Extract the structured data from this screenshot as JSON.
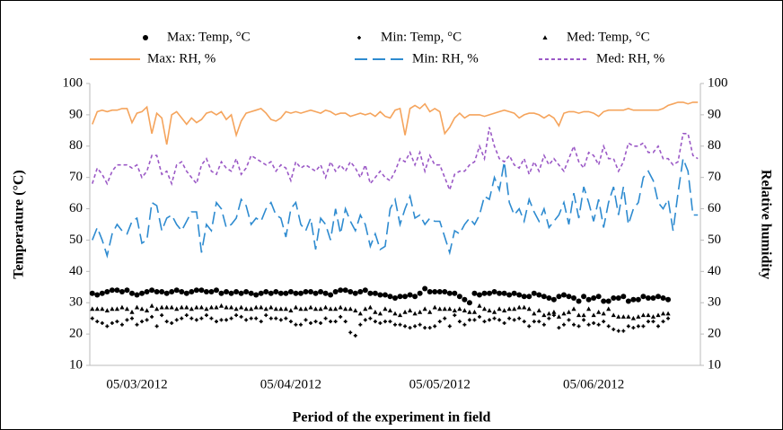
{
  "chart_data": {
    "type": "line",
    "x_label": "Period of the experiment in field",
    "y_label": "Temperature (°C)",
    "y2_label": "Relative humidity",
    "categories": [
      null,
      null,
      null,
      null,
      null,
      null,
      null,
      null,
      null,
      "05/03/2012",
      null,
      null,
      null,
      null,
      null,
      null,
      null,
      null,
      null,
      null,
      null,
      null,
      null,
      null,
      null,
      null,
      null,
      null,
      null,
      null,
      null,
      null,
      null,
      null,
      null,
      null,
      null,
      null,
      null,
      null,
      "05/04/2012",
      null,
      null,
      null,
      null,
      null,
      null,
      null,
      null,
      null,
      null,
      null,
      null,
      null,
      null,
      null,
      null,
      null,
      null,
      null,
      null,
      null,
      null,
      null,
      null,
      null,
      null,
      null,
      null,
      null,
      "05/05/2012",
      null,
      null,
      null,
      null,
      null,
      null,
      null,
      null,
      null,
      null,
      null,
      null,
      null,
      null,
      null,
      null,
      null,
      null,
      null,
      null,
      null,
      null,
      null,
      null,
      null,
      null,
      null,
      null,
      null,
      null,
      "05/06/2012",
      null,
      null,
      null,
      null,
      null,
      null,
      null,
      null,
      null,
      null,
      null,
      null,
      null,
      null,
      null,
      null,
      null,
      null,
      null,
      null,
      null
    ],
    "ylim": [
      10,
      100
    ],
    "yticks": [
      10,
      20,
      30,
      40,
      50,
      60,
      70,
      80,
      90,
      100
    ],
    "y2lim": [
      10,
      100
    ],
    "y2ticks": [
      10,
      20,
      30,
      40,
      50,
      60,
      70,
      80,
      90,
      100
    ],
    "series": [
      {
        "name": "Max: Temp, °C",
        "color": "#000000",
        "marker": "circle",
        "values": [
          33,
          32.5,
          33,
          33.5,
          34,
          34,
          33.5,
          34,
          33,
          32.5,
          33,
          33.5,
          34,
          33.5,
          33.5,
          33,
          33.5,
          34,
          33.5,
          33,
          33.5,
          34,
          34,
          33.5,
          33.5,
          34,
          33,
          33.5,
          33,
          33.5,
          33,
          33.5,
          33,
          32.5,
          33,
          33.5,
          33,
          33.5,
          33,
          33,
          33.5,
          33,
          33,
          33.5,
          33.5,
          33,
          33.5,
          33,
          32.5,
          33.5,
          34,
          34,
          33.5,
          33,
          33.5,
          34,
          33,
          33,
          32.5,
          32.5,
          32,
          31.5,
          32,
          32,
          32.5,
          32,
          33,
          34.5,
          33.5,
          33.5,
          33.5,
          33.5,
          33,
          33,
          32,
          31,
          30,
          33,
          32.5,
          33,
          33,
          33.5,
          33,
          33,
          32.5,
          33,
          32.5,
          32,
          32,
          33,
          32.5,
          32,
          31.5,
          31,
          32,
          32.5,
          32,
          31.5,
          30.5,
          32,
          31,
          31.5,
          32,
          30.5,
          30.5,
          31.5,
          31.5,
          32,
          30.5,
          31,
          31,
          32,
          31.5,
          31.5,
          32,
          31.5,
          31,
          null,
          null,
          null,
          null,
          null,
          null
        ]
      },
      {
        "name": "Min: Temp, °C",
        "color": "#000000",
        "marker": "plus",
        "values": [
          25,
          24,
          23.5,
          22.5,
          23.5,
          24,
          23,
          24.5,
          25,
          23,
          24,
          24.5,
          25.5,
          22.5,
          26,
          24,
          23.5,
          24.5,
          25,
          26,
          25,
          24.5,
          25,
          26,
          25,
          24,
          24.5,
          24.5,
          25,
          26,
          25.5,
          24.5,
          25,
          25,
          24,
          26,
          25,
          25,
          24.5,
          25,
          24,
          23,
          23,
          24.5,
          23.5,
          24,
          23.5,
          25,
          24,
          24,
          25.5,
          24,
          20.5,
          19.5,
          23,
          24.5,
          25,
          24,
          23.5,
          24,
          24,
          23,
          23,
          22.5,
          22,
          22.5,
          23,
          22,
          22,
          22.5,
          24,
          25,
          22.5,
          26,
          24,
          23,
          24.5,
          24.5,
          25.5,
          24,
          24.5,
          25,
          24.5,
          23.5,
          25,
          24.5,
          25,
          24,
          22.5,
          24,
          24,
          23,
          25,
          26,
          22,
          23,
          24.5,
          23,
          22.5,
          24.5,
          23,
          23.5,
          23,
          24,
          22.5,
          21.5,
          21,
          21,
          22.5,
          22,
          22.5,
          22.5,
          24,
          24,
          22.5,
          24,
          25,
          null,
          null,
          null,
          null,
          null,
          null
        ]
      },
      {
        "name": "Med: Temp, °C",
        "color": "#000000",
        "marker": "triangle",
        "values": [
          28,
          28,
          28,
          27.5,
          28,
          28,
          28.5,
          28,
          27,
          28.5,
          28,
          27.5,
          29,
          28,
          28.5,
          28.5,
          28.5,
          28,
          28.5,
          28.5,
          28,
          28.5,
          28.5,
          28,
          28.5,
          28.5,
          29,
          28.5,
          28.5,
          28,
          28.5,
          28,
          28,
          28.5,
          28.5,
          28,
          28.5,
          28,
          28,
          28,
          27.5,
          28.5,
          28,
          28,
          28.5,
          28,
          28,
          28.5,
          28,
          28,
          28.5,
          28,
          28,
          27.5,
          26.5,
          28,
          28.5,
          27,
          26.5,
          28,
          27.5,
          26.5,
          26,
          27,
          27.5,
          26.5,
          27,
          28,
          27,
          28.5,
          28,
          28,
          28,
          27.5,
          28,
          27.5,
          27,
          27,
          29,
          28,
          27.5,
          27,
          28,
          27.5,
          28,
          28,
          28.5,
          28.5,
          28,
          26.5,
          27.5,
          26,
          26.5,
          27,
          25.5,
          26.5,
          27,
          28,
          26,
          26,
          28,
          26,
          27,
          26.5,
          28,
          26,
          25.5,
          25.5,
          25.5,
          25,
          25.5,
          26,
          26,
          25.5,
          26,
          26.5,
          26.5,
          null,
          null,
          null,
          null,
          null,
          null
        ]
      },
      {
        "name": "Max: RH, %",
        "color": "#f5a45c",
        "axis": "y2",
        "dash": "none",
        "values": [
          87,
          91,
          91.5,
          91,
          91.5,
          91.5,
          92,
          92,
          87.5,
          90.5,
          91,
          92.5,
          84,
          90.5,
          89,
          80.5,
          90,
          91,
          89,
          87,
          89,
          87.5,
          88.5,
          90.5,
          91,
          90,
          91,
          88.5,
          90,
          83.5,
          88,
          90.5,
          91,
          91.5,
          92,
          90.5,
          88.5,
          88,
          89,
          91,
          90.5,
          91,
          90.5,
          91,
          91.5,
          91,
          90.5,
          91.5,
          91,
          90,
          90.5,
          90.5,
          89.5,
          90,
          90.5,
          90,
          90.5,
          89.5,
          91,
          89.5,
          89,
          91.5,
          92,
          83.5,
          92,
          93,
          92,
          93.5,
          91,
          92,
          91,
          84,
          86,
          89,
          90.5,
          89,
          90,
          90,
          90,
          89.5,
          90,
          90.5,
          91,
          91.5,
          91,
          90.5,
          89,
          90,
          90.5,
          90.5,
          90,
          89,
          90,
          89,
          86.5,
          90.5,
          91,
          91,
          90.5,
          91,
          91,
          90.5,
          89.5,
          91,
          91.5,
          91.5,
          91.5,
          91.5,
          92,
          91.5,
          91.5,
          91.5,
          91.5,
          91.5,
          91.5,
          92,
          93,
          93.5,
          94,
          94,
          93.5,
          94,
          94
        ]
      },
      {
        "name": "Min: RH, %",
        "color": "#2e8bd0",
        "axis": "y2",
        "dash": "14 6",
        "values": [
          50,
          54,
          50,
          45,
          52,
          55,
          53,
          52,
          56,
          57,
          49,
          50,
          62,
          61,
          53,
          57,
          58,
          55,
          53,
          56,
          59,
          59,
          46,
          55,
          53,
          62,
          60,
          54,
          55,
          57,
          63,
          61,
          55,
          57,
          56,
          60,
          62,
          58,
          57,
          51,
          60,
          62,
          55,
          53,
          57,
          47,
          57,
          55,
          50,
          60,
          52,
          60,
          56,
          53,
          58,
          55,
          48,
          52,
          47,
          48,
          60,
          63,
          55,
          60,
          64,
          57,
          58,
          55,
          57,
          56,
          56,
          51,
          46,
          53,
          52,
          55,
          57,
          55,
          58,
          64,
          63,
          70,
          66,
          75,
          62,
          58,
          60,
          56,
          63,
          59,
          56,
          60,
          54,
          56,
          58,
          62,
          55,
          65,
          57,
          67,
          62,
          56,
          63,
          54,
          62,
          67,
          58,
          67,
          55,
          60,
          62,
          70,
          72,
          69,
          62,
          60,
          63,
          53,
          65,
          76,
          72,
          58,
          58
        ]
      },
      {
        "name": "Med: RH, %",
        "color": "#9b59c6",
        "axis": "y2",
        "dash": "4 3",
        "values": [
          68,
          73,
          71,
          68,
          72,
          74,
          74,
          74,
          73,
          74,
          70,
          72,
          77,
          77,
          71,
          72,
          68,
          74,
          75,
          72,
          70,
          68,
          74,
          76,
          72,
          71,
          75,
          73,
          72,
          76,
          71,
          73,
          77,
          76,
          75,
          74,
          75,
          72,
          74,
          73,
          69,
          75,
          73,
          74,
          73,
          72,
          74,
          70,
          75,
          72,
          74,
          72,
          75,
          73,
          70,
          74,
          68,
          70,
          72,
          70,
          69,
          72,
          76,
          75,
          78,
          74,
          78,
          72,
          77,
          74,
          74,
          70,
          66,
          71,
          72,
          72,
          74,
          75,
          80,
          76,
          86,
          80,
          76,
          75,
          77,
          74,
          73,
          76,
          71,
          75,
          72,
          77,
          74,
          76,
          74,
          72,
          76,
          80,
          75,
          73,
          78,
          77,
          74,
          80,
          76,
          76,
          72,
          75,
          81,
          80,
          80,
          81,
          78,
          78,
          80,
          76,
          76,
          74,
          75,
          84,
          84,
          77,
          76
        ]
      }
    ]
  }
}
